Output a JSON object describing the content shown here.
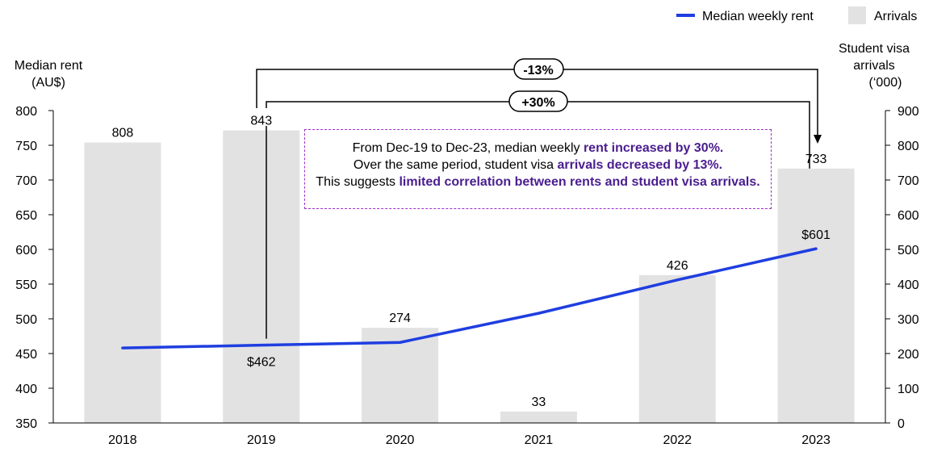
{
  "legend": {
    "line_label": "Median weekly rent",
    "bar_label": "Arrivals"
  },
  "colors": {
    "line": "#1f3ee0",
    "bar": "#e2e2e2",
    "annotation_border": "#9b30c8",
    "highlight_text": "#4a1d8f"
  },
  "axes": {
    "left_title_line1": "Median rent",
    "left_title_line2": "(AU$)",
    "right_title_line1": "Student visa",
    "right_title_line2": "arrivals",
    "right_title_line3": "(‘000)"
  },
  "annotations": {
    "change_arrivals": "-13%",
    "change_rent": "+30%",
    "note": {
      "p1": "From Dec-19 to Dec-23, median weekly ",
      "h1": "rent increased by 30%.",
      "p2": "Over the same period, student visa ",
      "h2": "arrivals decreased by 13%.",
      "p3": "This suggests ",
      "h3": "limited correlation between rents and student visa arrivals."
    }
  },
  "chart_data": {
    "type": "bar",
    "categories": [
      "2018",
      "2019",
      "2020",
      "2021",
      "2022",
      "2023"
    ],
    "series": [
      {
        "name": "Arrivals",
        "type": "bar",
        "axis": "right",
        "values": [
          808,
          843,
          274,
          33,
          426,
          733
        ],
        "labels": [
          "808",
          "843",
          "274",
          "33",
          "426",
          "733"
        ]
      },
      {
        "name": "Median weekly rent",
        "type": "line",
        "axis": "left",
        "values": [
          458,
          462,
          466,
          508,
          556,
          601
        ],
        "labels": [
          "",
          "$462",
          "",
          "",
          "",
          "$601"
        ]
      }
    ],
    "y_left": {
      "range": [
        350,
        800
      ],
      "ticks": [
        350,
        400,
        450,
        500,
        550,
        600,
        650,
        700,
        750,
        800
      ]
    },
    "y_right": {
      "range": [
        0,
        900
      ],
      "ticks": [
        0,
        100,
        200,
        300,
        400,
        500,
        600,
        700,
        800,
        900
      ]
    },
    "grid": false,
    "legend_position": "top-right"
  }
}
